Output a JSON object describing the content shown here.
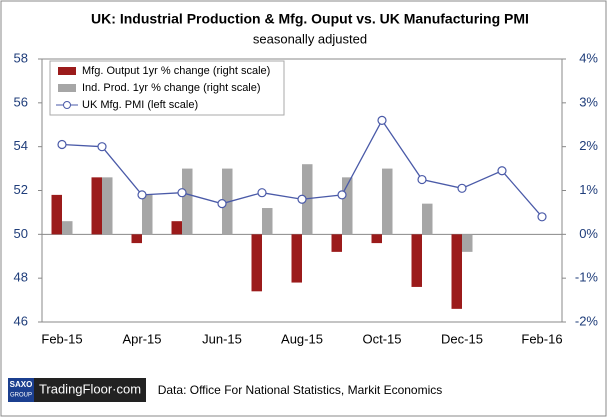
{
  "chart_data": {
    "type": "bar-line",
    "title": "UK: Industrial Production & Mfg. Ouput vs. UK Manufacturing PMI",
    "subtitle": "seasonally adjusted",
    "source": "Data: Office For National Statistics, Markit Economics",
    "logo": {
      "brand": "SAXO",
      "group": "GROUP",
      "site": "TradingFloor·com"
    },
    "categories": [
      "Feb-15",
      null,
      "Apr-15",
      null,
      "Jun-15",
      null,
      "Aug-15",
      null,
      "Oct-15",
      null,
      "Dec-15",
      null,
      "Feb-16"
    ],
    "series": [
      {
        "name": "Mfg. Output 1yr % change (right scale)",
        "type": "bar",
        "axis": "y2",
        "color": "#9b1b1b",
        "values": [
          0.9,
          1.3,
          -0.2,
          0.3,
          0,
          -1.3,
          -1.1,
          -0.4,
          -0.2,
          -1.2,
          -1.7,
          null,
          null
        ]
      },
      {
        "name": "Ind. Prod. 1yr  % change (right scale)",
        "type": "bar",
        "axis": "y2",
        "color": "#a6a6a6",
        "values": [
          0.3,
          1.3,
          0.9,
          1.5,
          1.5,
          0.6,
          1.6,
          1.3,
          1.5,
          0.7,
          -0.4,
          null,
          null
        ]
      },
      {
        "name": "UK Mfg. PMI (left scale)",
        "type": "line",
        "color": "#4a5aa8",
        "values": [
          54.1,
          54.0,
          51.8,
          51.9,
          51.4,
          51.9,
          51.6,
          51.8,
          55.2,
          52.5,
          52.1,
          52.9,
          50.8
        ]
      }
    ],
    "ylim": [
      46,
      58
    ],
    "yticks": [
      46,
      48,
      50,
      52,
      54,
      56,
      58
    ],
    "y2lim": [
      -2,
      4
    ],
    "y2ticks": [
      {
        "value": -2,
        "label": "-2%"
      },
      {
        "value": -1,
        "label": "-1%"
      },
      {
        "value": 0,
        "label": "0%"
      },
      {
        "value": 1,
        "label": "1%"
      },
      {
        "value": 2,
        "label": "2%"
      },
      {
        "value": 3,
        "label": "3%"
      },
      {
        "value": 4,
        "label": "4%"
      }
    ],
    "grid": false,
    "legend": "upper left"
  }
}
